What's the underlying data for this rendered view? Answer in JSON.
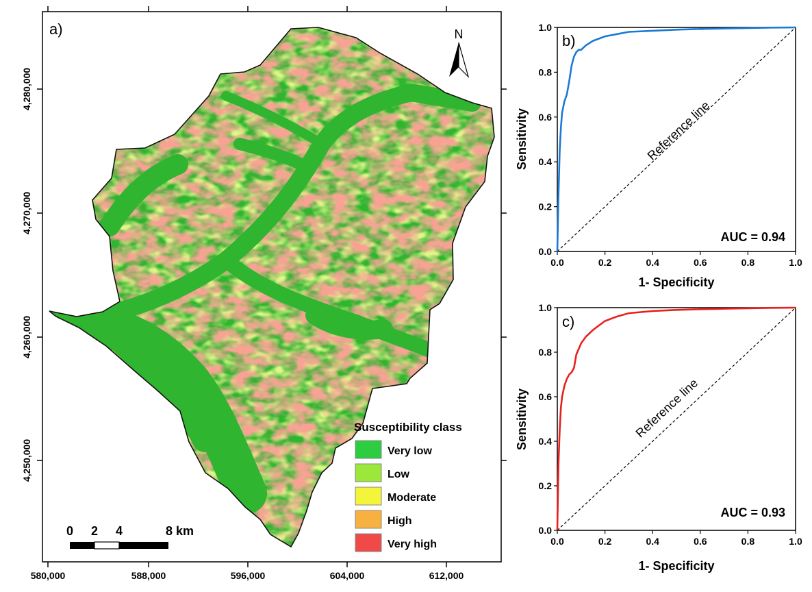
{
  "map": {
    "panel_label": "a)",
    "x_ticks": [
      "580,000",
      "588,000",
      "596,000",
      "604,000",
      "612,000"
    ],
    "y_ticks": [
      "4,280,000",
      "4,270,000",
      "4,260,000",
      "4,250,000"
    ],
    "north_label": "N",
    "scale": {
      "labels": [
        "0",
        "2",
        "4",
        "8 km"
      ]
    },
    "legend": {
      "title": "Susceptibility class",
      "items": [
        {
          "label": "Very low",
          "color": "#2ecc40"
        },
        {
          "label": "Low",
          "color": "#9be83a"
        },
        {
          "label": "Moderate",
          "color": "#f4f53a"
        },
        {
          "label": "High",
          "color": "#f8b040"
        },
        {
          "label": "Very high",
          "color": "#f04a48"
        }
      ]
    },
    "colors": {
      "base_green": "#2fb52f",
      "outline": "#111111"
    }
  },
  "roc_b": {
    "panel_label": "b)",
    "xlabel": "1- Specificity",
    "ylabel": "Sensitivity",
    "reference_label": "Reference line",
    "auc_label": "AUC = 0.94",
    "ticks": [
      "0.0",
      "0.2",
      "0.4",
      "0.6",
      "0.8",
      "1.0"
    ],
    "color": "#1a7ad4"
  },
  "roc_c": {
    "panel_label": "c)",
    "xlabel": "1- Specificity",
    "ylabel": "Sensitivity",
    "reference_label": "Reference line",
    "auc_label": "AUC = 0.93",
    "ticks": [
      "0.0",
      "0.2",
      "0.4",
      "0.6",
      "0.8",
      "1.0"
    ],
    "color": "#e8201c"
  },
  "chart_data": [
    {
      "type": "line",
      "title": "",
      "xlabel": "1- Specificity",
      "ylabel": "Sensitivity",
      "xlim": [
        0,
        1
      ],
      "ylim": [
        0,
        1
      ],
      "annotations": [
        "b)",
        "AUC = 0.94",
        "Reference line"
      ],
      "series": [
        {
          "x": [
            0,
            0.005,
            0.01,
            0.015,
            0.02,
            0.03,
            0.04,
            0.05,
            0.06,
            0.07,
            0.08,
            0.09,
            0.1,
            0.12,
            0.15,
            0.2,
            0.25,
            0.3,
            0.4,
            0.5,
            0.6,
            0.7,
            0.8,
            0.9,
            1.0
          ],
          "y": [
            0,
            0.25,
            0.45,
            0.55,
            0.62,
            0.67,
            0.7,
            0.76,
            0.83,
            0.87,
            0.89,
            0.9,
            0.9,
            0.92,
            0.94,
            0.96,
            0.97,
            0.98,
            0.985,
            0.99,
            0.993,
            0.995,
            0.997,
            0.999,
            1.0
          ]
        },
        {
          "x": [
            0,
            1
          ],
          "y": [
            0,
            1
          ]
        }
      ]
    },
    {
      "type": "line",
      "title": "",
      "xlabel": "1- Specificity",
      "ylabel": "Sensitivity",
      "xlim": [
        0,
        1
      ],
      "ylim": [
        0,
        1
      ],
      "annotations": [
        "c)",
        "AUC = 0.93",
        "Reference line"
      ],
      "series": [
        {
          "x": [
            0,
            0.005,
            0.01,
            0.015,
            0.02,
            0.03,
            0.04,
            0.05,
            0.06,
            0.07,
            0.08,
            0.1,
            0.12,
            0.15,
            0.2,
            0.25,
            0.3,
            0.4,
            0.5,
            0.6,
            0.7,
            0.8,
            0.9,
            1.0
          ],
          "y": [
            0,
            0.3,
            0.45,
            0.55,
            0.6,
            0.65,
            0.68,
            0.7,
            0.71,
            0.73,
            0.79,
            0.84,
            0.87,
            0.9,
            0.94,
            0.96,
            0.975,
            0.985,
            0.99,
            0.993,
            0.995,
            0.997,
            0.999,
            1.0
          ]
        },
        {
          "x": [
            0,
            1
          ],
          "y": [
            0,
            1
          ]
        }
      ]
    }
  ]
}
